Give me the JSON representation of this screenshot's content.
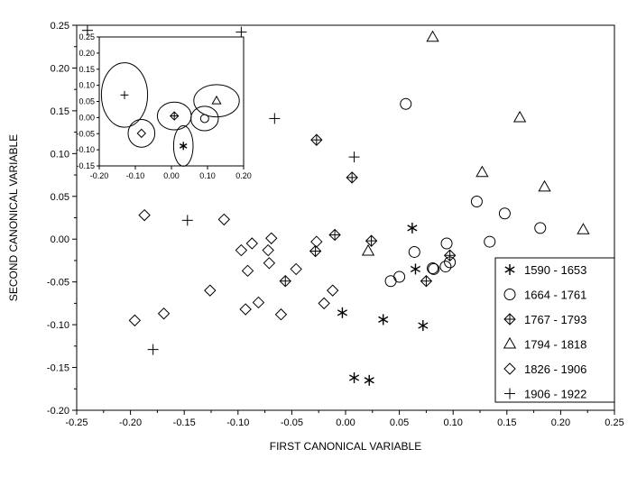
{
  "chart_data": {
    "type": "scatter",
    "xlabel": "FIRST CANONICAL VARIABLE",
    "ylabel": "SECOND CANONICAL VARIABLE",
    "xlim": [
      -0.25,
      0.25
    ],
    "ylim": [
      -0.2,
      0.25
    ],
    "x_ticks": [
      "-0.25",
      "-0.20",
      "-0.15",
      "-0.10",
      "-0.05",
      "0.00",
      "0.05",
      "0.10",
      "0.15",
      "0.20",
      "0.25"
    ],
    "y_ticks": [
      "-0.20",
      "-0.15",
      "-0.10",
      "-0.05",
      "0.00",
      "0.05",
      "0.10",
      "0.15",
      "0.20",
      "0.25"
    ],
    "legend_position": "lower-right",
    "grid": false,
    "series": [
      {
        "name": "1590 - 1653",
        "marker": "asterisk",
        "points": [
          [
            -0.003,
            -0.086
          ],
          [
            0.035,
            -0.094
          ],
          [
            0.062,
            0.013
          ],
          [
            0.065,
            -0.035
          ],
          [
            0.072,
            -0.101
          ],
          [
            0.008,
            -0.162
          ],
          [
            0.022,
            -0.165
          ]
        ]
      },
      {
        "name": "1664 - 1761",
        "marker": "circle",
        "points": [
          [
            0.056,
            0.158
          ],
          [
            0.122,
            0.044
          ],
          [
            0.148,
            0.03
          ],
          [
            0.134,
            -0.003
          ],
          [
            0.181,
            0.013
          ],
          [
            0.064,
            -0.015
          ],
          [
            0.094,
            -0.005
          ],
          [
            0.05,
            -0.044
          ],
          [
            0.042,
            -0.049
          ],
          [
            0.081,
            -0.034
          ],
          [
            0.082,
            -0.035
          ],
          [
            0.093,
            -0.032
          ],
          [
            0.097,
            -0.027
          ]
        ]
      },
      {
        "name": "1767 - 1793",
        "marker": "circle-plus",
        "points": [
          [
            -0.027,
            0.116
          ],
          [
            0.006,
            0.072
          ],
          [
            -0.01,
            0.005
          ],
          [
            -0.028,
            -0.014
          ],
          [
            -0.056,
            -0.049
          ],
          [
            0.024,
            -0.002
          ],
          [
            0.075,
            -0.049
          ],
          [
            0.097,
            -0.019
          ]
        ]
      },
      {
        "name": "1794 - 1818",
        "marker": "triangle",
        "points": [
          [
            0.081,
            0.236
          ],
          [
            0.162,
            0.142
          ],
          [
            0.127,
            0.078
          ],
          [
            0.185,
            0.061
          ],
          [
            0.221,
            0.011
          ],
          [
            0.021,
            -0.014
          ]
        ]
      },
      {
        "name": "1826 - 1906",
        "marker": "diamond",
        "points": [
          [
            -0.187,
            0.028
          ],
          [
            -0.113,
            0.023
          ],
          [
            -0.097,
            -0.013
          ],
          [
            -0.087,
            -0.005
          ],
          [
            -0.069,
            0.001
          ],
          [
            -0.072,
            -0.013
          ],
          [
            -0.071,
            -0.028
          ],
          [
            -0.091,
            -0.037
          ],
          [
            -0.046,
            -0.035
          ],
          [
            -0.027,
            -0.003
          ],
          [
            -0.126,
            -0.06
          ],
          [
            -0.093,
            -0.082
          ],
          [
            -0.081,
            -0.074
          ],
          [
            -0.06,
            -0.088
          ],
          [
            -0.012,
            -0.06
          ],
          [
            -0.02,
            -0.075
          ],
          [
            -0.196,
            -0.095
          ],
          [
            -0.169,
            -0.087
          ]
        ]
      },
      {
        "name": "1906 - 1922",
        "marker": "plus",
        "points": [
          [
            -0.24,
            0.244
          ],
          [
            -0.097,
            0.242
          ],
          [
            -0.066,
            0.141
          ],
          [
            0.008,
            0.096
          ],
          [
            -0.147,
            0.022
          ],
          [
            -0.179,
            -0.129
          ]
        ]
      }
    ],
    "inset": {
      "xlim": [
        -0.2,
        0.2
      ],
      "ylim": [
        -0.15,
        0.25
      ],
      "x_ticks": [
        "-0.20",
        "-0.10",
        "0.00",
        "0.10",
        "0.20"
      ],
      "y_ticks": [
        "0.25",
        "0.20",
        "0.15",
        "0.10",
        "0.05",
        "0.00",
        "-0.05",
        "-0.10",
        "-0.15"
      ],
      "centroids": [
        {
          "group": "1590 - 1653",
          "marker": "asterisk",
          "x": 0.033,
          "y": -0.088,
          "rx": 0.027,
          "ry": 0.063
        },
        {
          "group": "1664 - 1761",
          "marker": "circle",
          "x": 0.092,
          "y": -0.003,
          "rx": 0.038,
          "ry": 0.038
        },
        {
          "group": "1767 - 1793",
          "marker": "circle-plus",
          "x": 0.008,
          "y": 0.005,
          "rx": 0.047,
          "ry": 0.043
        },
        {
          "group": "1794 - 1818",
          "marker": "triangle",
          "x": 0.125,
          "y": 0.052,
          "rx": 0.063,
          "ry": 0.05
        },
        {
          "group": "1826 - 1906",
          "marker": "diamond",
          "x": -0.083,
          "y": -0.049,
          "rx": 0.037,
          "ry": 0.043
        },
        {
          "group": "1906 - 1922",
          "marker": "plus",
          "x": -0.13,
          "y": 0.07,
          "rx": 0.064,
          "ry": 0.1
        }
      ]
    }
  }
}
